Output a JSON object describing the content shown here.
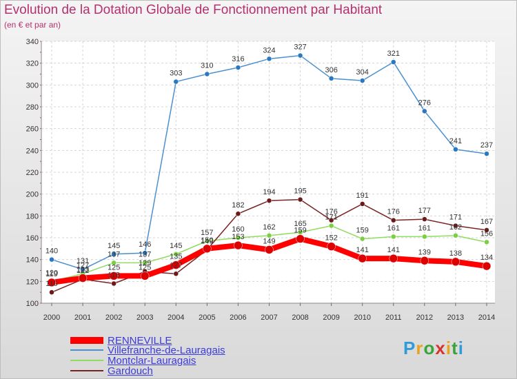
{
  "title": "Evolution de la Dotation Globale de Fonctionnement par Habitant",
  "subtitle": "(en € et par an)",
  "logo": {
    "letters": [
      "P",
      "r",
      "o",
      "x",
      "i",
      "t",
      "i"
    ],
    "colors": [
      "#2f9bd8",
      "#e9a21c",
      "#3aa43a",
      "#d8322f",
      "#e9a21c",
      "#3aa43a",
      "#2f9bd8"
    ]
  },
  "chart_data": {
    "type": "line",
    "x": [
      "2000",
      "2001",
      "2002",
      "2003",
      "2004",
      "2005",
      "2006",
      "2007",
      "2008",
      "2009",
      "2010",
      "2011",
      "2012",
      "2013",
      "2014"
    ],
    "ylim": [
      100,
      340
    ],
    "yticks": [
      "100",
      "120",
      "140",
      "160",
      "180",
      "200",
      "220",
      "240",
      "260",
      "280",
      "300",
      "320",
      "340"
    ],
    "grid": true,
    "legend_placement": "bottom-left",
    "series": [
      {
        "name": "Villefranche-de-Lauragais",
        "color": "#4a8fd0",
        "marker": "#2b78c2",
        "values": [
          140,
          131,
          145,
          146,
          303,
          310,
          316,
          324,
          327,
          306,
          304,
          321,
          276,
          241,
          237
        ],
        "labels": [
          "140",
          "131",
          "145",
          "146",
          "303",
          "310",
          "316",
          "324",
          "327",
          "306",
          "304",
          "321",
          "276",
          "241",
          "237"
        ]
      },
      {
        "name": "Montclar-Lauragais",
        "color": "#8fdc5f",
        "marker": "#7ccf45",
        "values": [
          120,
          127,
          137,
          137,
          145,
          157,
          160,
          162,
          165,
          171,
          159,
          161,
          161,
          162,
          156
        ],
        "labels": [
          "120",
          "127",
          "137",
          "137",
          "145",
          "157",
          "160",
          "162",
          "165",
          "171",
          "159",
          "161",
          "161",
          "162",
          "156"
        ]
      },
      {
        "name": "Gardouch",
        "color": "#7a2323",
        "marker": "#6b1a1a",
        "values": [
          110,
          122,
          118,
          129,
          127,
          149,
          182,
          194,
          195,
          176,
          191,
          176,
          177,
          171,
          167
        ],
        "labels": [
          "110",
          "122",
          "118",
          "129",
          "127",
          "149",
          "182",
          "194",
          "195",
          "176",
          "191",
          "176",
          "177",
          "171",
          "167"
        ]
      },
      {
        "name": "RENNEVILLE",
        "color": "#ff0000",
        "marker": "#dd0000",
        "values": [
          119,
          123,
          125,
          125,
          135,
          150,
          153,
          149,
          159,
          152,
          141,
          141,
          139,
          138,
          134
        ],
        "labels": [
          "119",
          "123",
          "125",
          "125",
          "135",
          "150",
          "153",
          "149",
          "159",
          "152",
          "141",
          "141",
          "139",
          "138",
          "134"
        ]
      }
    ],
    "legend": [
      "RENNEVILLE",
      "Villefranche-de-Lauragais",
      "Montclar-Lauragais",
      "Gardouch"
    ]
  }
}
